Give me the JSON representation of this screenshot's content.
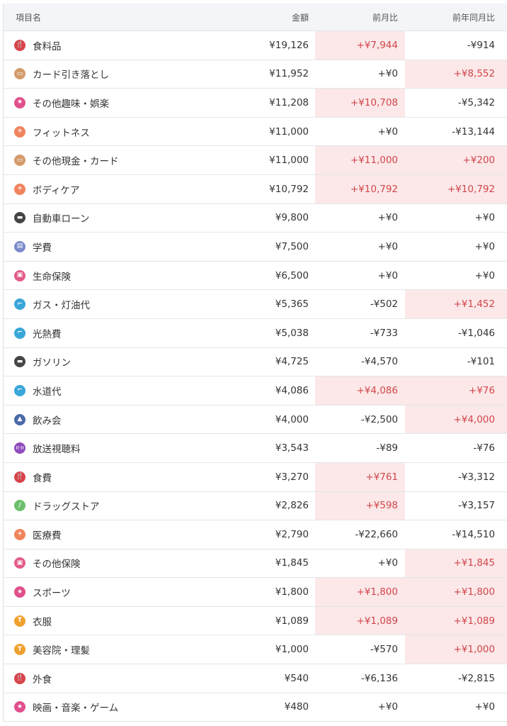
{
  "header": {
    "name": "項目名",
    "amount": "金額",
    "mom": "前月比",
    "yoy": "前年同月比"
  },
  "colors": {
    "highlight_bg": "#fce8e8",
    "highlight_text": "#d0454c"
  },
  "icons": {
    "food": {
      "color": "#d9434b",
      "glyph": "🍴"
    },
    "card": {
      "color": "#d39a6a",
      "glyph": "▭"
    },
    "star": {
      "color": "#e0508c",
      "glyph": "★"
    },
    "plus": {
      "color": "#f0845c",
      "glyph": "+"
    },
    "car": {
      "color": "#454545",
      "glyph": "▬"
    },
    "school": {
      "color": "#7b8bc9",
      "glyph": "▤"
    },
    "insurance": {
      "color": "#e25c8a",
      "glyph": "▣"
    },
    "water": {
      "color": "#3aa7d9",
      "glyph": "⌐"
    },
    "party": {
      "color": "#4a6aa8",
      "glyph": "▲"
    },
    "antenna": {
      "color": "#8e4bbd",
      "glyph": "((·))"
    },
    "drug": {
      "color": "#6cbf6c",
      "glyph": "/"
    },
    "shirt": {
      "color": "#f0a030",
      "glyph": "T"
    }
  },
  "rows": [
    {
      "icon": "food",
      "name": "食料品",
      "amount": "¥19,126",
      "mom": "+¥7,944",
      "yoy": "-¥914"
    },
    {
      "icon": "card",
      "name": "カード引き落とし",
      "amount": "¥11,952",
      "mom": "+¥0",
      "yoy": "+¥8,552"
    },
    {
      "icon": "star",
      "name": "その他趣味・娯楽",
      "amount": "¥11,208",
      "mom": "+¥10,708",
      "yoy": "-¥5,342"
    },
    {
      "icon": "plus",
      "name": "フィットネス",
      "amount": "¥11,000",
      "mom": "+¥0",
      "yoy": "-¥13,144"
    },
    {
      "icon": "card",
      "name": "その他現金・カード",
      "amount": "¥11,000",
      "mom": "+¥11,000",
      "yoy": "+¥200"
    },
    {
      "icon": "plus",
      "name": "ボディケア",
      "amount": "¥10,792",
      "mom": "+¥10,792",
      "yoy": "+¥10,792"
    },
    {
      "icon": "car",
      "name": "自動車ローン",
      "amount": "¥9,800",
      "mom": "+¥0",
      "yoy": "+¥0"
    },
    {
      "icon": "school",
      "name": "学費",
      "amount": "¥7,500",
      "mom": "+¥0",
      "yoy": "+¥0"
    },
    {
      "icon": "insurance",
      "name": "生命保険",
      "amount": "¥6,500",
      "mom": "+¥0",
      "yoy": "+¥0"
    },
    {
      "icon": "water",
      "name": "ガス・灯油代",
      "amount": "¥5,365",
      "mom": "-¥502",
      "yoy": "+¥1,452"
    },
    {
      "icon": "water",
      "name": "光熱費",
      "amount": "¥5,038",
      "mom": "-¥733",
      "yoy": "-¥1,046"
    },
    {
      "icon": "car",
      "name": "ガソリン",
      "amount": "¥4,725",
      "mom": "-¥4,570",
      "yoy": "-¥101"
    },
    {
      "icon": "water",
      "name": "水道代",
      "amount": "¥4,086",
      "mom": "+¥4,086",
      "yoy": "+¥76"
    },
    {
      "icon": "party",
      "name": "飲み会",
      "amount": "¥4,000",
      "mom": "-¥2,500",
      "yoy": "+¥4,000"
    },
    {
      "icon": "antenna",
      "name": "放送視聴料",
      "amount": "¥3,543",
      "mom": "-¥89",
      "yoy": "-¥76"
    },
    {
      "icon": "food",
      "name": "食費",
      "amount": "¥3,270",
      "mom": "+¥761",
      "yoy": "-¥3,312"
    },
    {
      "icon": "drug",
      "name": "ドラッグストア",
      "amount": "¥2,826",
      "mom": "+¥598",
      "yoy": "-¥3,157"
    },
    {
      "icon": "plus",
      "name": "医療費",
      "amount": "¥2,790",
      "mom": "-¥22,660",
      "yoy": "-¥14,510"
    },
    {
      "icon": "insurance",
      "name": "その他保険",
      "amount": "¥1,845",
      "mom": "+¥0",
      "yoy": "+¥1,845"
    },
    {
      "icon": "star",
      "name": "スポーツ",
      "amount": "¥1,800",
      "mom": "+¥1,800",
      "yoy": "+¥1,800"
    },
    {
      "icon": "shirt",
      "name": "衣服",
      "amount": "¥1,089",
      "mom": "+¥1,089",
      "yoy": "+¥1,089"
    },
    {
      "icon": "shirt",
      "name": "美容院・理髪",
      "amount": "¥1,000",
      "mom": "-¥570",
      "yoy": "+¥1,000"
    },
    {
      "icon": "food",
      "name": "外食",
      "amount": "¥540",
      "mom": "-¥6,136",
      "yoy": "-¥2,815"
    },
    {
      "icon": "star",
      "name": "映画・音楽・ゲーム",
      "amount": "¥480",
      "mom": "+¥0",
      "yoy": "+¥0"
    }
  ]
}
